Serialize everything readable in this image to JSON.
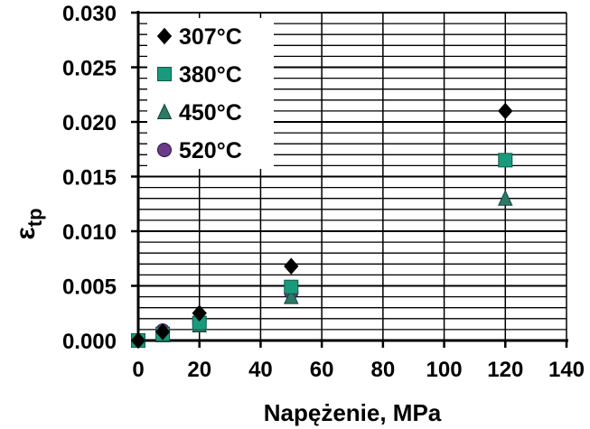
{
  "chart_data": {
    "type": "scatter",
    "title": "",
    "xlabel": "Napężenie, MPa",
    "ylabel_main": "ε",
    "ylabel_sub": "tp",
    "xlim": [
      0,
      140
    ],
    "ylim": [
      0.0,
      0.03
    ],
    "x_ticks": [
      "0",
      "20",
      "40",
      "60",
      "80",
      "100",
      "120",
      "140"
    ],
    "y_ticks": [
      "0.000",
      "0.005",
      "0.010",
      "0.015",
      "0.020",
      "0.025",
      "0.030"
    ],
    "grid": true,
    "legend_position": "top-left",
    "series": [
      {
        "name": "307°C",
        "marker": "diamond",
        "color": "#000000",
        "points": [
          [
            0,
            0.0
          ],
          [
            8,
            0.0008
          ],
          [
            20,
            0.0025
          ],
          [
            50,
            0.0068
          ],
          [
            120,
            0.021
          ]
        ]
      },
      {
        "name": "380°C",
        "marker": "square",
        "color": "#1a9a7c",
        "points": [
          [
            0,
            0.0
          ],
          [
            8,
            0.0006
          ],
          [
            20,
            0.0016
          ],
          [
            50,
            0.0049
          ],
          [
            120,
            0.0165
          ]
        ]
      },
      {
        "name": "450°C",
        "marker": "triangle",
        "color": "#2a7a66",
        "points": [
          [
            0,
            0.0
          ],
          [
            8,
            0.0005
          ],
          [
            20,
            0.0014
          ],
          [
            50,
            0.004
          ],
          [
            120,
            0.013
          ]
        ]
      },
      {
        "name": "520°C",
        "marker": "circle",
        "color": "#6b3a8a",
        "points": [
          [
            0,
            0.0
          ],
          [
            8,
            0.0009
          ],
          [
            20,
            0.0017
          ],
          [
            50,
            0.0044
          ]
        ]
      }
    ]
  }
}
